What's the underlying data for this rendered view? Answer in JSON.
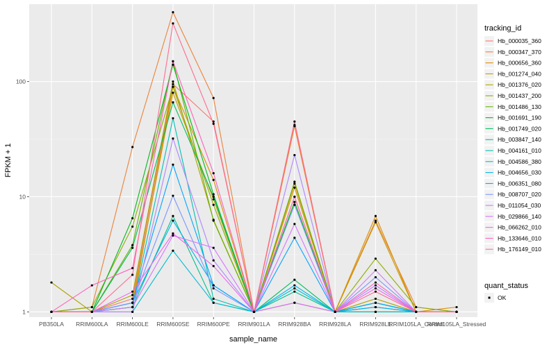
{
  "chart_data": {
    "type": "line",
    "xlabel": "sample_name",
    "ylabel": "FPKM + 1",
    "y_scale": "log10",
    "ylim": [
      0.9,
      470
    ],
    "y_ticks": [
      1,
      10,
      100
    ],
    "y_tick_labels": [
      "1",
      "10",
      "100"
    ],
    "grid": true,
    "legend_position": "right",
    "categories": [
      "PB350LA",
      "RRIM600LA",
      "RRIM600LE",
      "RRIM600SE",
      "RRIM600PE",
      "RRIM901LA",
      "RRIM928BA",
      "RRIM928LA",
      "RRIM928LE",
      "RRIM105LA_Control",
      "RRIM105LA_Stressed"
    ],
    "tick_labels": [
      "PB350LA",
      "RRIM600LA",
      "RRIM600LE",
      "RRIM600SE",
      "RRIM600PE",
      "RRIM901LA",
      "RRIM928BA",
      "RRIM928LA",
      "RRIM928LE",
      "RRIM105LA_Control",
      "RRIM105LA_Stressed"
    ],
    "legend_title": "tracking_id",
    "series": [
      {
        "name": "Hb_000035_360",
        "color": "#F8766D",
        "values": [
          1.0,
          1.0,
          1.3,
          95,
          45,
          1.0,
          42,
          1.0,
          1.1,
          1.0,
          1.0
        ]
      },
      {
        "name": "Hb_000347_370",
        "color": "#EC8239",
        "values": [
          1.0,
          1.1,
          27,
          400,
          72,
          1.0,
          41,
          1.0,
          6.2,
          1.1,
          1.0
        ]
      },
      {
        "name": "Hb_000656_360",
        "color": "#DB8E00",
        "values": [
          1.0,
          1.0,
          1.1,
          90,
          14,
          1.0,
          13,
          1.0,
          6.8,
          1.0,
          1.1
        ]
      },
      {
        "name": "Hb_001274_040",
        "color": "#C79800",
        "values": [
          1.0,
          1.0,
          1.2,
          80,
          9.5,
          1.0,
          12,
          1.0,
          6.0,
          1.0,
          1.0
        ]
      },
      {
        "name": "Hb_001376_020",
        "color": "#AEA200",
        "values": [
          1.8,
          1.0,
          1.4,
          100,
          6.3,
          1.0,
          10,
          1.0,
          1.3,
          1.0,
          1.0
        ]
      },
      {
        "name": "Hb_001437_200",
        "color": "#8FAA00",
        "values": [
          1.0,
          1.1,
          5.5,
          90,
          8.5,
          1.0,
          9,
          1.0,
          2.9,
          1.1,
          1.0
        ]
      },
      {
        "name": "Hb_001486_130",
        "color": "#64B200",
        "values": [
          1.0,
          1.0,
          3.8,
          150,
          6.2,
          1.0,
          13.5,
          1.0,
          1.2,
          1.0,
          1.0
        ]
      },
      {
        "name": "Hb_001691_190",
        "color": "#00B81B",
        "values": [
          1.0,
          1.0,
          6.5,
          140,
          10.5,
          1.0,
          9,
          1.0,
          1.0,
          1.0,
          1.0
        ]
      },
      {
        "name": "Hb_001749_020",
        "color": "#00BD5C",
        "values": [
          1.0,
          1.0,
          3.6,
          66,
          10,
          1.0,
          1.9,
          1.0,
          1.0,
          1.0,
          1.0
        ]
      },
      {
        "name": "Hb_003847_140",
        "color": "#00C08E",
        "values": [
          1.0,
          1.0,
          1.1,
          6.8,
          1.2,
          1.0,
          1.5,
          1.0,
          1.2,
          1.0,
          1.0
        ]
      },
      {
        "name": "Hb_004161_010",
        "color": "#00C1B2",
        "values": [
          1.0,
          1.0,
          1.1,
          48,
          1.3,
          1.0,
          1.2,
          1.0,
          1.0,
          1.0,
          1.0
        ]
      },
      {
        "name": "Hb_004586_380",
        "color": "#00BCD1",
        "values": [
          1.0,
          1.0,
          1.0,
          3.4,
          1.2,
          1.0,
          1.6,
          1.0,
          1.1,
          1.0,
          1.0
        ]
      },
      {
        "name": "Hb_004656_030",
        "color": "#00B3EC",
        "values": [
          1.0,
          1.0,
          1.2,
          6.2,
          1.7,
          1.0,
          1.7,
          1.0,
          1.1,
          1.0,
          1.0
        ]
      },
      {
        "name": "Hb_006351_080",
        "color": "#00A5FF",
        "values": [
          1.0,
          1.0,
          1.2,
          19,
          1.7,
          1.0,
          4.4,
          1.0,
          1.2,
          1.0,
          1.0
        ]
      },
      {
        "name": "Hb_008707_020",
        "color": "#7997FF",
        "values": [
          1.0,
          1.0,
          1.2,
          10.2,
          1.6,
          1.0,
          8.5,
          1.0,
          2.0,
          1.0,
          1.0
        ]
      },
      {
        "name": "Hb_011054_030",
        "color": "#B086FF",
        "values": [
          1.0,
          1.0,
          1.0,
          32,
          2.8,
          1.0,
          23,
          1.0,
          1.7,
          1.0,
          1.0
        ]
      },
      {
        "name": "Hb_029866_140",
        "color": "#D575FE",
        "values": [
          1.0,
          1.0,
          1.1,
          4.6,
          3.6,
          1.0,
          5.8,
          1.0,
          2.3,
          1.0,
          1.0
        ]
      },
      {
        "name": "Hb_066262_010",
        "color": "#EF67EB",
        "values": [
          1.0,
          1.0,
          1.5,
          4.8,
          2.5,
          1.0,
          1.2,
          1.0,
          1.6,
          1.0,
          1.0
        ]
      },
      {
        "name": "Hb_133646_010",
        "color": "#FF62BC",
        "values": [
          1.0,
          1.7,
          2.4,
          150,
          16,
          1.0,
          10,
          1.0,
          1.8,
          1.0,
          1.0
        ]
      },
      {
        "name": "Hb_176149_010",
        "color": "#FF6C90",
        "values": [
          1.0,
          1.0,
          2.1,
          320,
          43,
          1.0,
          45,
          1.0,
          1.5,
          1.0,
          1.0
        ]
      }
    ],
    "legend2_title": "quant_status",
    "legend2_items": [
      {
        "label": "OK"
      }
    ]
  }
}
